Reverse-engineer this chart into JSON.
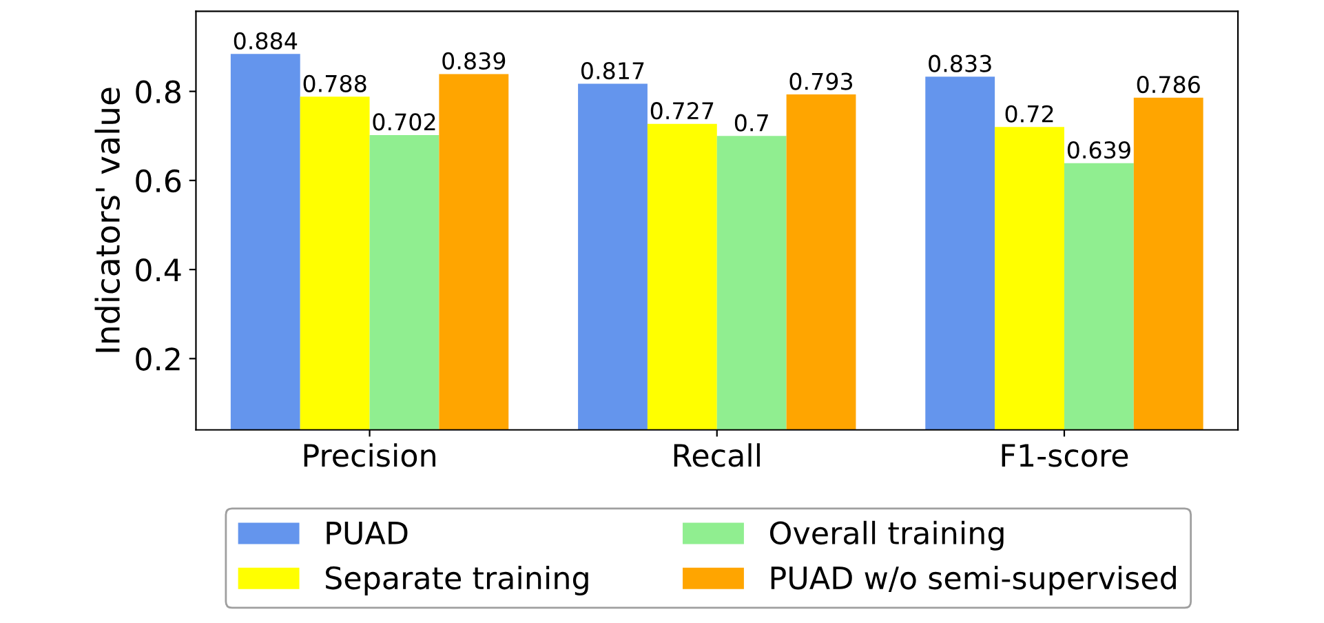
{
  "chart_data": {
    "type": "bar",
    "ylabel": "Indicators' value",
    "categories": [
      "Precision",
      "Recall",
      "F1-score"
    ],
    "series": [
      {
        "name": "PUAD",
        "color": "#6495ed",
        "values": [
          0.884,
          0.817,
          0.833
        ]
      },
      {
        "name": "Separate training",
        "color": "#ffff00",
        "values": [
          0.788,
          0.727,
          0.72
        ]
      },
      {
        "name": "Overall training",
        "color": "#90ee90",
        "values": [
          0.702,
          0.7,
          0.639
        ]
      },
      {
        "name": "PUAD w/o semi-supervised",
        "color": "#ffa500",
        "values": [
          0.839,
          0.793,
          0.786
        ]
      }
    ],
    "ylim": [
      0.04,
      0.98
    ],
    "yticks": [
      0.2,
      0.4,
      0.6,
      0.8
    ],
    "data_labels": true,
    "legend": "bottom",
    "grid": false
  }
}
